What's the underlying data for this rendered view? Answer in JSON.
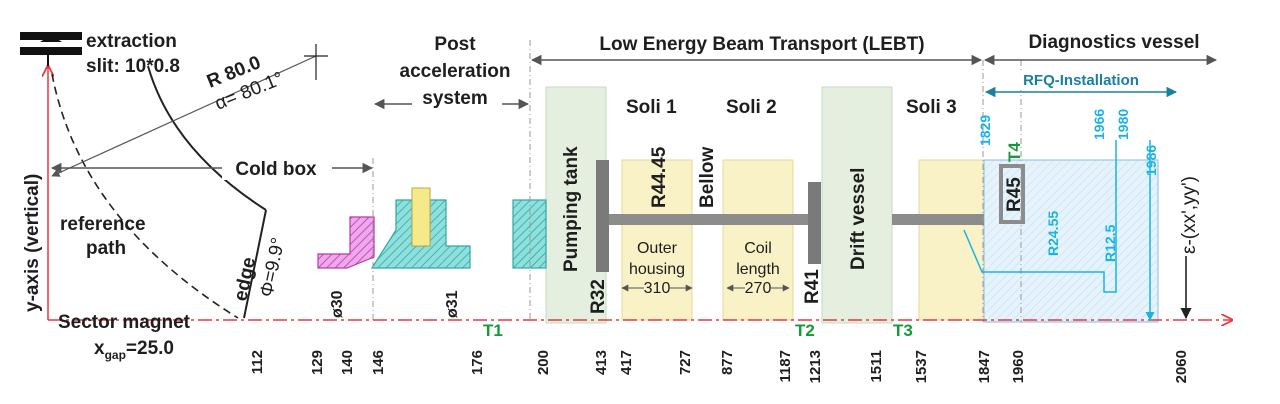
{
  "extraction": {
    "line1": "extraction",
    "line2": "slit: 10*0.8"
  },
  "radius": {
    "r": "R 80.0",
    "alpha": "α= 80.1°"
  },
  "axis": {
    "y": "y-axis (vertical)",
    "sector": "Sector magnet",
    "xgap_pre": "x",
    "xgap_sub": "gap",
    "xgap_val": "=25.0"
  },
  "reference_path": {
    "line1": "reference",
    "line2": "path"
  },
  "edge": {
    "label": "edge",
    "phi": "Φ=9.9°"
  },
  "cold_box": "Cold box",
  "post_acc": {
    "line1": "Post",
    "line2": "acceleration",
    "line3": "system"
  },
  "lebt": "Low Energy Beam Transport (LEBT)",
  "diagnostics": "Diagnostics vessel",
  "rfq": "RFQ-Installation",
  "components": {
    "pumping_tank": "Pumping tank",
    "soli1": "Soli 1",
    "soli2": "Soli 2",
    "soli3": "Soli 3",
    "r4445": "R44.45",
    "bellow": "Bellow",
    "drift_vessel": "Drift vessel",
    "outer_housing": {
      "line1": "Outer",
      "line2": "housing",
      "dim": "310"
    },
    "coil_length": {
      "line1": "Coil",
      "line2": "length",
      "dim": "270"
    },
    "r32": "R32",
    "r41": "R41",
    "r45": "R45",
    "r2455": "R24.55",
    "r125": "R12.5",
    "emittance": "ε-(xx',yy')"
  },
  "diameters": {
    "d30": "ø30",
    "d31": "ø31"
  },
  "markers": {
    "t1": "T1",
    "t2": "T2",
    "t3": "T3",
    "t4": "T4"
  },
  "cyan_ticks": {
    "a": "1829",
    "b": "1966",
    "c": "1980",
    "d": "1986"
  },
  "ticks": [
    "112",
    "129",
    "140",
    "146",
    "176",
    "200",
    "413",
    "417",
    "727",
    "877",
    "1187",
    "1213",
    "1511",
    "1537",
    "1847",
    "1960",
    "2060"
  ],
  "colors": {
    "beam_axis": "#e8383d",
    "magenta": "#e25fd2",
    "cyan_hatch": "#5fd0cf",
    "yellow": "#f6e98a",
    "green_tank": "#e4efe0",
    "rfq_blue": "#dfeefa",
    "tube": "#8c8c8c",
    "cyan_text": "#1ab3e6",
    "green_text": "#159a3a",
    "teal": "#1a7fa0"
  }
}
